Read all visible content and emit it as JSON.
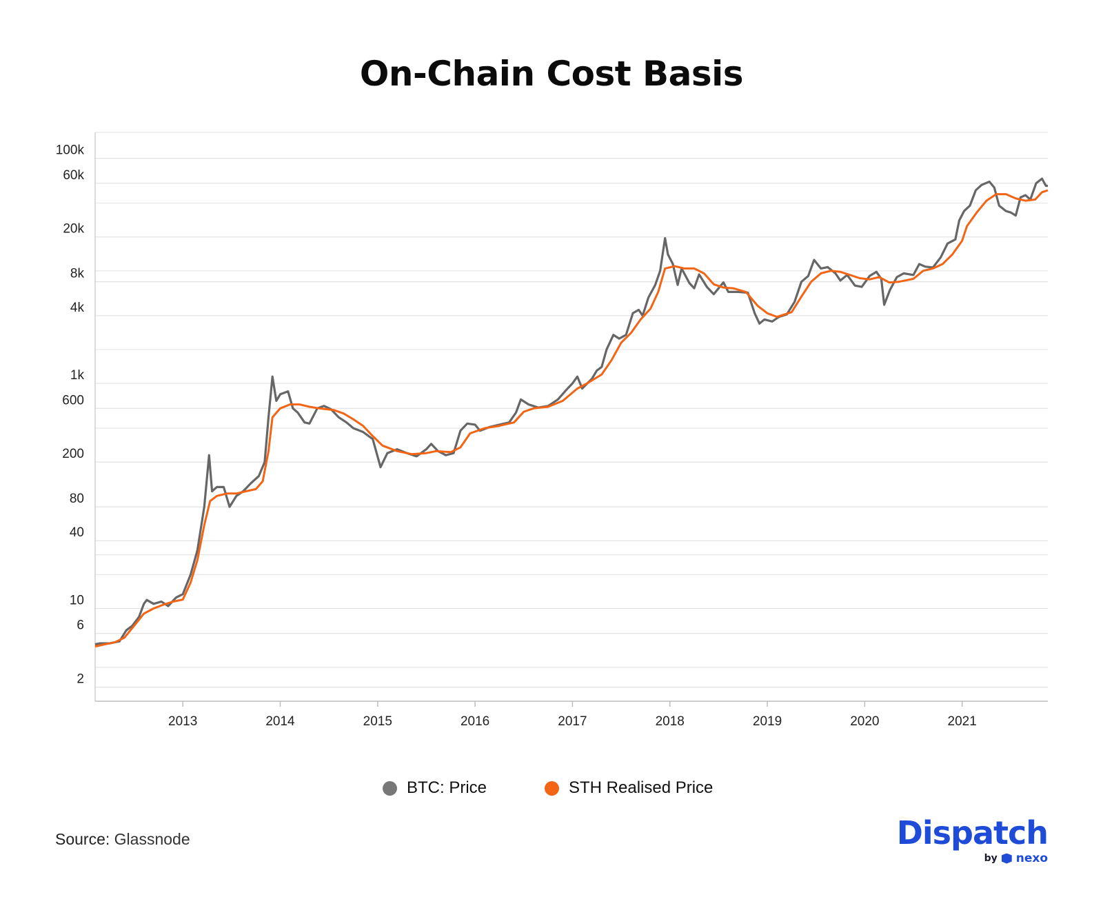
{
  "header": {
    "title": "On-Chain Cost Basis"
  },
  "legend": {
    "items": [
      {
        "label": "BTC: Price",
        "color": "#777777"
      },
      {
        "label": "STH Realised Price",
        "color": "#f36414"
      }
    ]
  },
  "footer": {
    "source_label": "Source:",
    "source_value": "Glassnode",
    "brand_name": "Dispatch",
    "brand_by": "by",
    "brand_partner": "nexo",
    "brand_icon": "nexo-hexagon-icon",
    "brand_color": "#1e4bd8"
  },
  "chart_data": {
    "type": "line",
    "title": "On-Chain Cost Basis",
    "xlabel": "",
    "ylabel": "",
    "y_scale": "log",
    "ylim": [
      1.5,
      170000
    ],
    "xlim": [
      2012.1,
      2021.88
    ],
    "grid": true,
    "legend_position": "bottom-center",
    "y_ticks": [
      {
        "value": 2,
        "label": "2"
      },
      {
        "value": 6,
        "label": "6"
      },
      {
        "value": 10,
        "label": "10"
      },
      {
        "value": 40,
        "label": "40"
      },
      {
        "value": 80,
        "label": "80"
      },
      {
        "value": 200,
        "label": "200"
      },
      {
        "value": 600,
        "label": "600"
      },
      {
        "value": 1000,
        "label": "1k"
      },
      {
        "value": 4000,
        "label": "4k"
      },
      {
        "value": 8000,
        "label": "8k"
      },
      {
        "value": 20000,
        "label": "20k"
      },
      {
        "value": 60000,
        "label": "60k"
      },
      {
        "value": 100000,
        "label": "100k"
      }
    ],
    "x_ticks": [
      {
        "value": 2013,
        "label": "2013"
      },
      {
        "value": 2014,
        "label": "2014"
      },
      {
        "value": 2015,
        "label": "2015"
      },
      {
        "value": 2016,
        "label": "2016"
      },
      {
        "value": 2017,
        "label": "2017"
      },
      {
        "value": 2018,
        "label": "2018"
      },
      {
        "value": 2019,
        "label": "2019"
      },
      {
        "value": 2020,
        "label": "2020"
      },
      {
        "value": 2021,
        "label": "2021"
      }
    ],
    "series": [
      {
        "name": "BTC: Price",
        "color": "#666666",
        "points": [
          [
            2012.1,
            4.8
          ],
          [
            2012.15,
            4.9
          ],
          [
            2012.25,
            4.9
          ],
          [
            2012.35,
            5.1
          ],
          [
            2012.42,
            6.4
          ],
          [
            2012.48,
            7.0
          ],
          [
            2012.55,
            8.4
          ],
          [
            2012.6,
            11.0
          ],
          [
            2012.63,
            11.9
          ],
          [
            2012.7,
            11.0
          ],
          [
            2012.78,
            11.5
          ],
          [
            2012.85,
            10.5
          ],
          [
            2012.93,
            12.5
          ],
          [
            2013.0,
            13.4
          ],
          [
            2013.08,
            20.0
          ],
          [
            2013.15,
            33.0
          ],
          [
            2013.22,
            80.0
          ],
          [
            2013.27,
            230.0
          ],
          [
            2013.3,
            110.0
          ],
          [
            2013.35,
            120.0
          ],
          [
            2013.42,
            120.0
          ],
          [
            2013.48,
            80.0
          ],
          [
            2013.55,
            100.0
          ],
          [
            2013.62,
            110.0
          ],
          [
            2013.7,
            130.0
          ],
          [
            2013.78,
            150.0
          ],
          [
            2013.84,
            200.0
          ],
          [
            2013.88,
            500.0
          ],
          [
            2013.92,
            1150.0
          ],
          [
            2013.96,
            700.0
          ],
          [
            2014.0,
            800.0
          ],
          [
            2014.08,
            850.0
          ],
          [
            2014.13,
            600.0
          ],
          [
            2014.18,
            550.0
          ],
          [
            2014.25,
            450.0
          ],
          [
            2014.3,
            440.0
          ],
          [
            2014.38,
            600.0
          ],
          [
            2014.45,
            630.0
          ],
          [
            2014.52,
            590.0
          ],
          [
            2014.6,
            500.0
          ],
          [
            2014.68,
            450.0
          ],
          [
            2014.75,
            400.0
          ],
          [
            2014.85,
            370.0
          ],
          [
            2014.95,
            320.0
          ],
          [
            2015.03,
            180.0
          ],
          [
            2015.1,
            240.0
          ],
          [
            2015.2,
            260.0
          ],
          [
            2015.3,
            240.0
          ],
          [
            2015.4,
            225.0
          ],
          [
            2015.5,
            260.0
          ],
          [
            2015.55,
            290.0
          ],
          [
            2015.62,
            250.0
          ],
          [
            2015.7,
            230.0
          ],
          [
            2015.78,
            240.0
          ],
          [
            2015.85,
            380.0
          ],
          [
            2015.92,
            440.0
          ],
          [
            2016.0,
            430.0
          ],
          [
            2016.05,
            380.0
          ],
          [
            2016.15,
            410.0
          ],
          [
            2016.25,
            430.0
          ],
          [
            2016.35,
            450.0
          ],
          [
            2016.42,
            550.0
          ],
          [
            2016.47,
            720.0
          ],
          [
            2016.55,
            650.0
          ],
          [
            2016.65,
            610.0
          ],
          [
            2016.75,
            630.0
          ],
          [
            2016.85,
            720.0
          ],
          [
            2016.95,
            900.0
          ],
          [
            2017.0,
            1000.0
          ],
          [
            2017.05,
            1150.0
          ],
          [
            2017.1,
            900.0
          ],
          [
            2017.2,
            1100.0
          ],
          [
            2017.25,
            1300.0
          ],
          [
            2017.3,
            1400.0
          ],
          [
            2017.35,
            2000.0
          ],
          [
            2017.42,
            2700.0
          ],
          [
            2017.48,
            2500.0
          ],
          [
            2017.55,
            2700.0
          ],
          [
            2017.62,
            4200.0
          ],
          [
            2017.68,
            4500.0
          ],
          [
            2017.72,
            4000.0
          ],
          [
            2017.78,
            5800.0
          ],
          [
            2017.85,
            7500.0
          ],
          [
            2017.9,
            10000.0
          ],
          [
            2017.95,
            19500.0
          ],
          [
            2017.98,
            14000.0
          ],
          [
            2018.03,
            11500.0
          ],
          [
            2018.08,
            7500.0
          ],
          [
            2018.12,
            10500.0
          ],
          [
            2018.2,
            7800.0
          ],
          [
            2018.25,
            7000.0
          ],
          [
            2018.3,
            9300.0
          ],
          [
            2018.38,
            7200.0
          ],
          [
            2018.45,
            6200.0
          ],
          [
            2018.55,
            7900.0
          ],
          [
            2018.6,
            6500.0
          ],
          [
            2018.7,
            6500.0
          ],
          [
            2018.8,
            6400.0
          ],
          [
            2018.87,
            4200.0
          ],
          [
            2018.92,
            3400.0
          ],
          [
            2018.97,
            3700.0
          ],
          [
            2019.05,
            3550.0
          ],
          [
            2019.12,
            3900.0
          ],
          [
            2019.2,
            4100.0
          ],
          [
            2019.28,
            5300.0
          ],
          [
            2019.35,
            8000.0
          ],
          [
            2019.42,
            9000.0
          ],
          [
            2019.48,
            12500.0
          ],
          [
            2019.55,
            10500.0
          ],
          [
            2019.62,
            10800.0
          ],
          [
            2019.7,
            9500.0
          ],
          [
            2019.75,
            8200.0
          ],
          [
            2019.82,
            9200.0
          ],
          [
            2019.9,
            7400.0
          ],
          [
            2019.97,
            7200.0
          ],
          [
            2020.05,
            9000.0
          ],
          [
            2020.12,
            9800.0
          ],
          [
            2020.17,
            8500.0
          ],
          [
            2020.2,
            5000.0
          ],
          [
            2020.26,
            6800.0
          ],
          [
            2020.33,
            8800.0
          ],
          [
            2020.4,
            9500.0
          ],
          [
            2020.5,
            9200.0
          ],
          [
            2020.56,
            11500.0
          ],
          [
            2020.62,
            10900.0
          ],
          [
            2020.7,
            10700.0
          ],
          [
            2020.78,
            13200.0
          ],
          [
            2020.85,
            17500.0
          ],
          [
            2020.93,
            19000.0
          ],
          [
            2020.97,
            28000.0
          ],
          [
            2021.02,
            34000.0
          ],
          [
            2021.08,
            38000.0
          ],
          [
            2021.14,
            52000.0
          ],
          [
            2021.2,
            58000.0
          ],
          [
            2021.28,
            62000.0
          ],
          [
            2021.33,
            55000.0
          ],
          [
            2021.38,
            38000.0
          ],
          [
            2021.45,
            34000.0
          ],
          [
            2021.5,
            33000.0
          ],
          [
            2021.55,
            31000.0
          ],
          [
            2021.6,
            45000.0
          ],
          [
            2021.65,
            47000.0
          ],
          [
            2021.7,
            43000.0
          ],
          [
            2021.76,
            60000.0
          ],
          [
            2021.82,
            66000.0
          ],
          [
            2021.86,
            57000.0
          ],
          [
            2021.88,
            57000.0
          ]
        ]
      },
      {
        "name": "STH Realised Price",
        "color": "#f36414",
        "points": [
          [
            2012.1,
            4.6
          ],
          [
            2012.2,
            4.8
          ],
          [
            2012.3,
            5.0
          ],
          [
            2012.4,
            5.5
          ],
          [
            2012.5,
            7.0
          ],
          [
            2012.6,
            9.0
          ],
          [
            2012.7,
            10.0
          ],
          [
            2012.8,
            10.8
          ],
          [
            2012.9,
            11.5
          ],
          [
            2013.0,
            12.0
          ],
          [
            2013.08,
            17.0
          ],
          [
            2013.15,
            27.0
          ],
          [
            2013.22,
            55.0
          ],
          [
            2013.28,
            90.0
          ],
          [
            2013.35,
            100.0
          ],
          [
            2013.45,
            105.0
          ],
          [
            2013.55,
            105.0
          ],
          [
            2013.65,
            110.0
          ],
          [
            2013.75,
            115.0
          ],
          [
            2013.82,
            135.0
          ],
          [
            2013.88,
            250.0
          ],
          [
            2013.92,
            500.0
          ],
          [
            2014.0,
            600.0
          ],
          [
            2014.1,
            650.0
          ],
          [
            2014.2,
            650.0
          ],
          [
            2014.3,
            620.0
          ],
          [
            2014.4,
            600.0
          ],
          [
            2014.55,
            580.0
          ],
          [
            2014.65,
            540.0
          ],
          [
            2014.75,
            480.0
          ],
          [
            2014.85,
            420.0
          ],
          [
            2014.95,
            340.0
          ],
          [
            2015.05,
            280.0
          ],
          [
            2015.2,
            250.0
          ],
          [
            2015.35,
            235.0
          ],
          [
            2015.5,
            240.0
          ],
          [
            2015.6,
            250.0
          ],
          [
            2015.75,
            245.0
          ],
          [
            2015.85,
            270.0
          ],
          [
            2015.95,
            360.0
          ],
          [
            2016.1,
            400.0
          ],
          [
            2016.25,
            420.0
          ],
          [
            2016.4,
            450.0
          ],
          [
            2016.5,
            560.0
          ],
          [
            2016.6,
            600.0
          ],
          [
            2016.75,
            620.0
          ],
          [
            2016.9,
            700.0
          ],
          [
            2017.05,
            900.0
          ],
          [
            2017.15,
            1000.0
          ],
          [
            2017.3,
            1200.0
          ],
          [
            2017.4,
            1600.0
          ],
          [
            2017.5,
            2300.0
          ],
          [
            2017.6,
            2800.0
          ],
          [
            2017.7,
            3700.0
          ],
          [
            2017.8,
            4600.0
          ],
          [
            2017.88,
            6500.0
          ],
          [
            2017.95,
            10500.0
          ],
          [
            2018.05,
            11000.0
          ],
          [
            2018.15,
            10500.0
          ],
          [
            2018.25,
            10500.0
          ],
          [
            2018.35,
            9500.0
          ],
          [
            2018.45,
            7600.0
          ],
          [
            2018.55,
            7100.0
          ],
          [
            2018.65,
            7000.0
          ],
          [
            2018.78,
            6500.0
          ],
          [
            2018.9,
            4900.0
          ],
          [
            2019.0,
            4200.0
          ],
          [
            2019.1,
            3900.0
          ],
          [
            2019.25,
            4300.0
          ],
          [
            2019.35,
            5900.0
          ],
          [
            2019.45,
            8000.0
          ],
          [
            2019.55,
            9500.0
          ],
          [
            2019.65,
            10000.0
          ],
          [
            2019.75,
            9800.0
          ],
          [
            2019.85,
            9200.0
          ],
          [
            2019.95,
            8600.0
          ],
          [
            2020.05,
            8400.0
          ],
          [
            2020.15,
            8800.0
          ],
          [
            2020.25,
            7900.0
          ],
          [
            2020.35,
            8000.0
          ],
          [
            2020.5,
            8500.0
          ],
          [
            2020.6,
            10000.0
          ],
          [
            2020.7,
            10500.0
          ],
          [
            2020.8,
            11500.0
          ],
          [
            2020.9,
            14000.0
          ],
          [
            2021.0,
            18500.0
          ],
          [
            2021.05,
            25000.0
          ],
          [
            2021.15,
            33000.0
          ],
          [
            2021.25,
            42000.0
          ],
          [
            2021.35,
            48000.0
          ],
          [
            2021.45,
            48000.0
          ],
          [
            2021.55,
            44000.0
          ],
          [
            2021.65,
            42000.0
          ],
          [
            2021.75,
            43000.0
          ],
          [
            2021.82,
            50000.0
          ],
          [
            2021.88,
            52000.0
          ]
        ]
      }
    ]
  }
}
